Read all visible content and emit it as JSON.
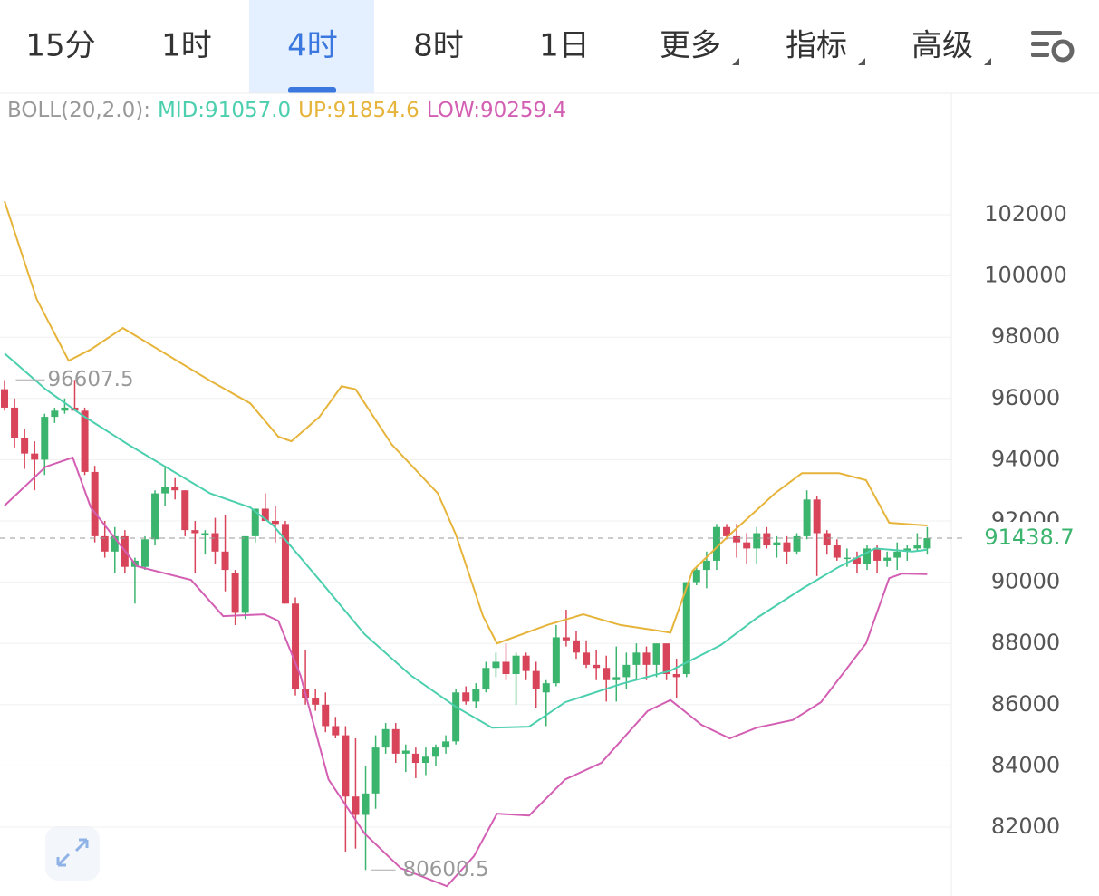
{
  "tabs": [
    {
      "label": "15分"
    },
    {
      "label": "1时"
    },
    {
      "label": "4时"
    },
    {
      "label": "8时"
    },
    {
      "label": "1日"
    },
    {
      "label": "更多",
      "dropdown": true
    },
    {
      "label": "指标",
      "dropdown": true
    },
    {
      "label": "高级",
      "dropdown": true
    }
  ],
  "active_tab": "4时",
  "chart_data": {
    "type": "candlestick",
    "indicator": "BOLL(20,2.0):",
    "ylim": [
      79870,
      105905
    ],
    "yticks": [
      82000,
      84000,
      86000,
      88000,
      90000,
      92000,
      94000,
      96000,
      98000,
      100000,
      102000
    ],
    "grid": true,
    "up_color": "#3bb46e",
    "down_color": "#d8455a",
    "open": [
      96300,
      95700,
      94700,
      94200,
      94000,
      95400,
      95600,
      95700,
      95600,
      93600,
      91500,
      91000,
      91500,
      90500,
      90500,
      91400,
      92900,
      93100,
      93000,
      91700,
      91600,
      91600,
      91000,
      90300,
      89000,
      91500,
      92400,
      92000,
      91900,
      89300,
      86500,
      86200,
      86000,
      85300,
      85000,
      83000,
      82400,
      83100,
      84600,
      85200,
      84400,
      84400,
      84100,
      84300,
      84600,
      84800,
      86400,
      86100,
      86500,
      87200,
      87400,
      87000,
      87600,
      87100,
      86400,
      86700,
      88200,
      88100,
      87700,
      87300,
      87200,
      86800,
      86900,
      87300,
      87700,
      87300,
      88000,
      87000,
      87000,
      90000,
      90400,
      90700,
      91800,
      91500,
      91300,
      91100,
      91600,
      91200,
      91300,
      91000,
      91500,
      92700,
      91600,
      91200,
      90800,
      90800,
      90600,
      91100,
      90700,
      90800,
      91000,
      91100,
      91100
    ],
    "high": [
      96600,
      96000,
      95000,
      94600,
      95500,
      95700,
      96000,
      96607.5,
      95700,
      93800,
      92000,
      91800,
      91700,
      90800,
      91500,
      93000,
      93800,
      93400,
      93000,
      92000,
      91700,
      92100,
      92200,
      90400,
      91500,
      92400,
      92900,
      92500,
      92000,
      89500,
      87800,
      86500,
      86400,
      85600,
      85300,
      84900,
      84000,
      85000,
      85400,
      85400,
      84700,
      84600,
      84600,
      84700,
      85000,
      86500,
      86600,
      86700,
      87400,
      87700,
      88000,
      87700,
      87700,
      87400,
      86800,
      88600,
      89100,
      88400,
      88100,
      87800,
      87600,
      87900,
      87700,
      88000,
      87900,
      88000,
      88000,
      87500,
      90000,
      90500,
      91000,
      91900,
      91900,
      91900,
      91600,
      91800,
      91800,
      91500,
      91500,
      91600,
      93000,
      92800,
      91700,
      91400,
      91100,
      91000,
      91200,
      91200,
      91000,
      91300,
      91200,
      91600,
      91800
    ],
    "low": [
      95600,
      94400,
      93700,
      93000,
      93500,
      95200,
      95500,
      95600,
      93500,
      91300,
      90800,
      90300,
      90300,
      89300,
      90400,
      91200,
      92500,
      92700,
      91500,
      90300,
      90900,
      90600,
      89700,
      88600,
      88800,
      91300,
      92000,
      91300,
      89300,
      86300,
      86000,
      85800,
      85100,
      84900,
      81200,
      81300,
      80600.5,
      82600,
      84400,
      84100,
      83800,
      83600,
      83700,
      84000,
      84400,
      84700,
      86000,
      85900,
      86400,
      86900,
      86800,
      86000,
      86800,
      85900,
      85300,
      86600,
      87900,
      87500,
      87200,
      86800,
      86100,
      86100,
      86500,
      86800,
      86800,
      86900,
      86800,
      86200,
      86900,
      89900,
      89800,
      90400,
      91400,
      90800,
      90600,
      90600,
      91100,
      90800,
      90600,
      90900,
      91400,
      90200,
      90900,
      90700,
      90500,
      90300,
      90400,
      90300,
      90500,
      90400,
      90700,
      91000,
      90900
    ],
    "close": [
      95700,
      94700,
      94200,
      94000,
      95400,
      95600,
      95700,
      95600,
      93600,
      91500,
      91000,
      91500,
      90500,
      90700,
      91400,
      92900,
      93100,
      93000,
      91700,
      91600,
      91600,
      91000,
      90400,
      89000,
      91500,
      92400,
      92000,
      91900,
      89300,
      86500,
      86200,
      86000,
      85300,
      85000,
      83000,
      82400,
      83100,
      84600,
      85200,
      84400,
      84500,
      84100,
      84300,
      84600,
      84800,
      86400,
      86100,
      86500,
      87200,
      87400,
      87000,
      87600,
      87100,
      86500,
      86700,
      88200,
      88100,
      87700,
      87300,
      87200,
      86800,
      86900,
      87300,
      87700,
      87300,
      88000,
      87000,
      86900,
      90000,
      90400,
      90700,
      91800,
      91500,
      91300,
      91100,
      91600,
      91200,
      91300,
      91000,
      91500,
      92700,
      91600,
      91200,
      90800,
      90800,
      90600,
      91100,
      90700,
      90800,
      91000,
      91100,
      91200,
      91438.7
    ],
    "series": [
      {
        "name": "MID:91057.0",
        "color": "#4ccfae",
        "x": [
          0,
          4.1,
          7.7,
          12.3,
          20.5,
          24.5,
          26.8,
          31.4,
          35.9,
          40.5,
          45,
          48.6,
          52.3,
          55.9,
          61.4,
          66.4,
          71.4,
          75,
          79.5,
          83.2,
          86.8,
          90.5,
          92
        ],
        "values": [
          97470,
          96300,
          95460,
          94500,
          92900,
          92440,
          91850,
          90070,
          88300,
          86960,
          85930,
          85250,
          85280,
          86080,
          86670,
          87110,
          87940,
          88830,
          89780,
          90500,
          91100,
          91000,
          91060
        ]
      },
      {
        "name": "UP:91854.6",
        "color": "#e6b43a",
        "x": [
          0,
          3.2,
          6.4,
          8.6,
          11.8,
          20.5,
          24.5,
          27.3,
          28.6,
          31.4,
          33.6,
          35,
          38.6,
          43.2,
          45,
          47.7,
          49.1,
          54.1,
          57.7,
          61.4,
          64.5,
          66.4,
          68.6,
          72.3,
          76.8,
          79.5,
          83.2,
          85.9,
          88.2,
          92
        ],
        "values": [
          102440,
          99250,
          97230,
          97600,
          98300,
          96580,
          95840,
          94750,
          94600,
          95400,
          96400,
          96300,
          94500,
          92900,
          91550,
          88900,
          88000,
          88600,
          88950,
          88600,
          88450,
          88350,
          90370,
          91550,
          92900,
          93560,
          93560,
          93330,
          91940,
          91850
        ]
      },
      {
        "name": "LOW:90259.4",
        "color": "#d35fb3",
        "x": [
          0,
          4.1,
          6.8,
          8.6,
          13.2,
          18.6,
          21.8,
          25.9,
          27.3,
          29.5,
          32.3,
          35.9,
          39.5,
          44.1,
          46.8,
          49.1,
          52.3,
          55.9,
          59.5,
          64.1,
          66.4,
          69.5,
          72.3,
          75,
          78.6,
          81.4,
          85.9,
          88.2,
          89.5,
          92
        ],
        "values": [
          92500,
          93770,
          94070,
          92440,
          90520,
          90070,
          88890,
          88950,
          88740,
          86960,
          83560,
          81790,
          80660,
          80070,
          81050,
          82440,
          82380,
          83560,
          84100,
          85790,
          86150,
          85340,
          84900,
          85250,
          85500,
          86080,
          88000,
          90130,
          90280,
          90260
        ]
      }
    ]
  }
}
